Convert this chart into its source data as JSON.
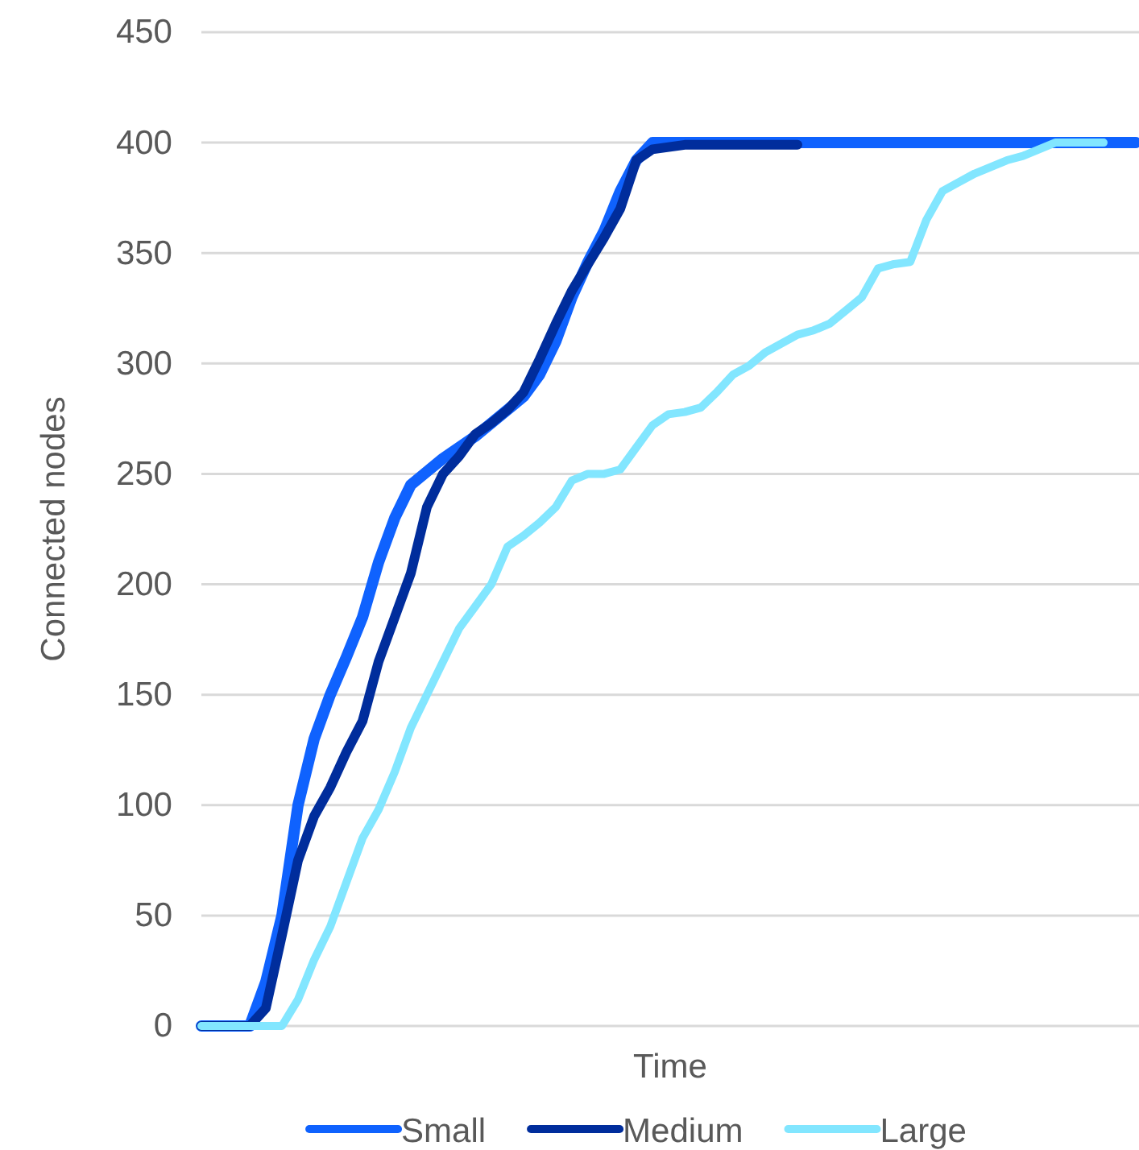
{
  "chart_data": {
    "type": "line",
    "xlabel": "Time",
    "ylabel": "Connected nodes",
    "categories": [
      null,
      null,
      null,
      null,
      null,
      null,
      null,
      null,
      null,
      null,
      null,
      null,
      null,
      null,
      null,
      null,
      null,
      null,
      null,
      null,
      null,
      null,
      null,
      null,
      null,
      null,
      null,
      null,
      null,
      null,
      null,
      null,
      null,
      null,
      null,
      null,
      null,
      null,
      null,
      null,
      null,
      null,
      null,
      null,
      null,
      null,
      null,
      null,
      null,
      null,
      null,
      null,
      null,
      null,
      null,
      null,
      null,
      null,
      null
    ],
    "ylim": [
      0,
      450
    ],
    "yticks": [
      0,
      50,
      100,
      150,
      200,
      250,
      300,
      350,
      400,
      450
    ],
    "grid": "y",
    "legend": "bottom",
    "line_style": "solid",
    "marker": "none",
    "tick_labels": "y",
    "series": [
      {
        "name": "Small",
        "color": "#0f62fe",
        "values": [
          0,
          0,
          0,
          0,
          20,
          50,
          100,
          130,
          150,
          167,
          185,
          210,
          230,
          245,
          251,
          257,
          262,
          267,
          273,
          279,
          285,
          295,
          310,
          330,
          346,
          360,
          378,
          392,
          400,
          400,
          400,
          400,
          400,
          400,
          400,
          400,
          400,
          400,
          400,
          400,
          400,
          400,
          400,
          400,
          400,
          400,
          400,
          400,
          400,
          400,
          400,
          400,
          400,
          400,
          400,
          400,
          400,
          400,
          400
        ]
      },
      {
        "name": "Medium",
        "color": "#002d9c",
        "values": [
          0,
          0,
          0,
          0,
          8,
          41,
          75,
          95,
          108,
          124,
          138,
          165,
          185,
          205,
          235,
          250,
          258,
          268,
          273,
          279,
          287,
          302,
          318,
          333,
          345,
          357,
          370,
          392,
          397,
          398,
          399,
          399,
          399,
          399,
          399,
          399,
          399,
          399,
          null,
          null,
          null,
          null,
          null,
          null,
          null,
          null,
          null,
          null,
          null,
          null,
          null,
          null,
          null,
          null,
          null,
          null,
          null,
          null,
          null
        ]
      },
      {
        "name": "Large",
        "color": "#82e6ff",
        "values": [
          0,
          0,
          0,
          0,
          0,
          0,
          12,
          30,
          45,
          65,
          85,
          98,
          115,
          135,
          150,
          165,
          180,
          190,
          200,
          217,
          222,
          228,
          235,
          247,
          250,
          250,
          252,
          262,
          272,
          277,
          278,
          280,
          287,
          295,
          299,
          305,
          309,
          313,
          315,
          318,
          324,
          330,
          343,
          345,
          346,
          365,
          378,
          382,
          386,
          389,
          392,
          394,
          397,
          400,
          400,
          400,
          400,
          null,
          null
        ]
      }
    ]
  }
}
